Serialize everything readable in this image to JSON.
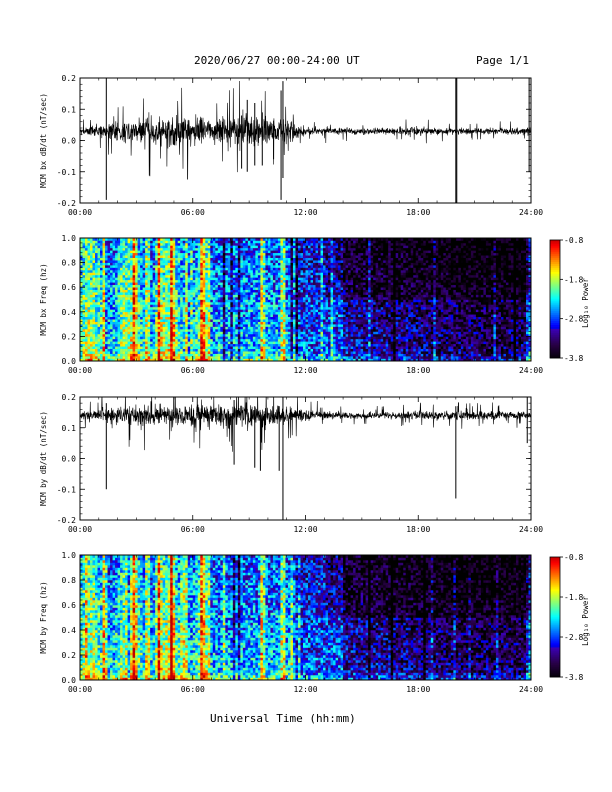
{
  "header": {
    "title": "2020/06/27  00:00-24:00 UT",
    "page": "Page 1/1"
  },
  "xlabel": "Universal Time (hh:mm)",
  "chart_data": [
    {
      "type": "line",
      "ylabel": "MCM bx dB/dt (nT/sec)",
      "xlim": [
        0,
        24
      ],
      "ylim": [
        -0.2,
        0.2
      ],
      "xticks": [
        "00:00",
        "06:00",
        "12:00",
        "18:00",
        "24:00"
      ],
      "yticks": [
        "-0.2",
        "-0.1",
        "0.0",
        "0.1",
        "0.2"
      ],
      "baseline": 0.03,
      "activity": [
        {
          "x": 0,
          "amp": 0.02
        },
        {
          "x": 1,
          "amp": 0.025
        },
        {
          "x": 2,
          "amp": 0.05
        },
        {
          "x": 3,
          "amp": 0.06
        },
        {
          "x": 4,
          "amp": 0.07
        },
        {
          "x": 5,
          "amp": 0.08
        },
        {
          "x": 6,
          "amp": 0.07
        },
        {
          "x": 7,
          "amp": 0.06
        },
        {
          "x": 8,
          "amp": 0.075
        },
        {
          "x": 9,
          "amp": 0.08
        },
        {
          "x": 10,
          "amp": 0.07
        },
        {
          "x": 11,
          "amp": 0.05
        },
        {
          "x": 12,
          "amp": 0.02
        },
        {
          "x": 13,
          "amp": 0.018
        },
        {
          "x": 14,
          "amp": 0.015
        },
        {
          "x": 16,
          "amp": 0.015
        },
        {
          "x": 18,
          "amp": 0.02
        },
        {
          "x": 20,
          "amp": 0.015
        },
        {
          "x": 22,
          "amp": 0.015
        },
        {
          "x": 24,
          "amp": 0.02
        }
      ],
      "spikes": [
        {
          "x": 1.4,
          "ymin": -0.19,
          "ymax": 0.2
        },
        {
          "x": 8.6,
          "ymin": -0.09,
          "ymax": 0.08
        },
        {
          "x": 8.9,
          "ymin": -0.1,
          "ymax": 0.13
        },
        {
          "x": 9.3,
          "ymin": -0.08,
          "ymax": 0.12
        },
        {
          "x": 9.7,
          "ymin": -0.08,
          "ymax": 0.09
        },
        {
          "x": 10.3,
          "ymin": -0.06,
          "ymax": 0.05
        },
        {
          "x": 10.7,
          "ymin": -0.19,
          "ymax": 0.16
        },
        {
          "x": 10.8,
          "ymin": -0.12,
          "ymax": 0.19
        },
        {
          "x": 20.0,
          "ymin": -0.21,
          "ymax": 0.21
        },
        {
          "x": 20.05,
          "ymin": -0.21,
          "ymax": 0.21
        },
        {
          "x": 23.9,
          "ymin": -0.1,
          "ymax": 0.21
        }
      ]
    },
    {
      "type": "heatmap",
      "ylabel": "MCM bx Freq (hz)",
      "colorbar_label": "Log₁₀ Power",
      "xlim": [
        0,
        24
      ],
      "ylim": [
        0,
        1.0
      ],
      "xticks": [
        "00:00",
        "06:00",
        "12:00",
        "18:00",
        "24:00"
      ],
      "yticks": [
        "0.0",
        "0.2",
        "0.4",
        "0.6",
        "0.8",
        "1.0"
      ],
      "colorbar_ticks": [
        "-0.8",
        "-1.8",
        "-2.8",
        "-3.8"
      ],
      "zlim": [
        -3.8,
        -0.8
      ],
      "bright_times": [
        1.3,
        2.9,
        3.6,
        4.2,
        4.9,
        5.6,
        6.5,
        9.7,
        10.8,
        23.9
      ]
    },
    {
      "type": "line",
      "ylabel": "MCM by dB/dt (nT/sec)",
      "xlim": [
        0,
        24
      ],
      "ylim": [
        -0.2,
        0.2
      ],
      "xticks": [
        "00:00",
        "06:00",
        "12:00",
        "18:00",
        "24:00"
      ],
      "yticks": [
        "-0.2",
        "-0.1",
        "0.0",
        "0.1",
        "0.2"
      ],
      "baseline": 0.14,
      "activity": [
        {
          "x": 0,
          "amp": 0.02
        },
        {
          "x": 1,
          "amp": 0.03
        },
        {
          "x": 2,
          "amp": 0.045
        },
        {
          "x": 3,
          "amp": 0.05
        },
        {
          "x": 4,
          "amp": 0.055
        },
        {
          "x": 5,
          "amp": 0.06
        },
        {
          "x": 6,
          "amp": 0.06
        },
        {
          "x": 7,
          "amp": 0.05
        },
        {
          "x": 8,
          "amp": 0.055
        },
        {
          "x": 9,
          "amp": 0.06
        },
        {
          "x": 10,
          "amp": 0.05
        },
        {
          "x": 11,
          "amp": 0.04
        },
        {
          "x": 12,
          "amp": 0.025
        },
        {
          "x": 13,
          "amp": 0.02
        },
        {
          "x": 14,
          "amp": 0.015
        },
        {
          "x": 16,
          "amp": 0.015
        },
        {
          "x": 18,
          "amp": 0.02
        },
        {
          "x": 20,
          "amp": 0.02
        },
        {
          "x": 22,
          "amp": 0.02
        },
        {
          "x": 24,
          "amp": 0.02
        }
      ],
      "spikes": [
        {
          "x": 1.4,
          "ymin": -0.1,
          "ymax": 0.18
        },
        {
          "x": 8.2,
          "ymin": -0.02,
          "ymax": 0.19
        },
        {
          "x": 9.3,
          "ymin": -0.03,
          "ymax": 0.17
        },
        {
          "x": 9.6,
          "ymin": -0.04,
          "ymax": 0.15
        },
        {
          "x": 10.6,
          "ymin": -0.04,
          "ymax": 0.17
        },
        {
          "x": 10.8,
          "ymin": -0.22,
          "ymax": 0.2
        },
        {
          "x": 20.0,
          "ymin": -0.13,
          "ymax": 0.17
        },
        {
          "x": 23.8,
          "ymin": 0.05,
          "ymax": 0.2
        }
      ]
    },
    {
      "type": "heatmap",
      "ylabel": "MCM by Freq (hz)",
      "colorbar_label": "Log₁₀ Power",
      "xlim": [
        0,
        24
      ],
      "ylim": [
        0,
        1.0
      ],
      "xticks": [
        "00:00",
        "06:00",
        "12:00",
        "18:00",
        "24:00"
      ],
      "yticks": [
        "0.0",
        "0.2",
        "0.4",
        "0.6",
        "0.8",
        "1.0"
      ],
      "colorbar_ticks": [
        "-0.8",
        "-1.8",
        "-2.8",
        "-3.8"
      ],
      "zlim": [
        -3.8,
        -0.8
      ],
      "bright_times": [
        1.3,
        2.9,
        3.6,
        4.2,
        4.9,
        5.6,
        6.5,
        9.7,
        10.8,
        23.9
      ]
    }
  ]
}
